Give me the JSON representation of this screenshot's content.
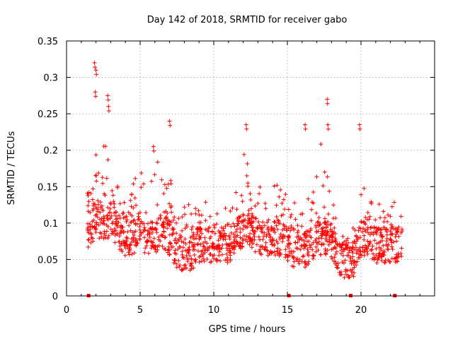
{
  "chart_data": {
    "type": "scatter",
    "title": "Day 142 of 2018, SRMTID for receiver gabo",
    "xlabel": "GPS time / hours",
    "ylabel": "SRMTID / TECUs",
    "xlim": [
      0,
      25
    ],
    "ylim": [
      0,
      0.35
    ],
    "xticks": [
      0,
      5,
      10,
      15,
      20
    ],
    "xtick_labels": [
      "0",
      "5",
      "10",
      "15",
      "20"
    ],
    "yticks": [
      0,
      0.05,
      0.1,
      0.15,
      0.2,
      0.25,
      0.3,
      0.35
    ],
    "ytick_labels": [
      "0",
      "0.05",
      "0.1",
      "0.15",
      "0.2",
      "0.25",
      "0.3",
      "0.35"
    ],
    "grid": true,
    "marker": "plus",
    "color": "#ff0000",
    "x_range_hours": [
      1.4,
      22.8
    ],
    "data_gap_markers_x": [
      1.5,
      15.1,
      19.3,
      22.3
    ],
    "envelope": {
      "x": [
        1.4,
        1.8,
        2.0,
        2.3,
        2.8,
        3.0,
        3.4,
        4.0,
        4.5,
        5.0,
        5.5,
        6.0,
        6.5,
        7.0,
        7.5,
        8.0,
        8.5,
        9.0,
        9.5,
        10.0,
        10.5,
        11.0,
        11.5,
        12.0,
        12.5,
        13.0,
        13.5,
        14.0,
        14.5,
        15.0,
        15.5,
        16.0,
        16.5,
        17.0,
        17.5,
        17.8,
        18.2,
        18.5,
        19.0,
        19.5,
        20.0,
        20.5,
        21.0,
        21.5,
        22.0,
        22.5,
        22.8
      ],
      "center": [
        0.09,
        0.1,
        0.11,
        0.1,
        0.1,
        0.11,
        0.09,
        0.08,
        0.08,
        0.09,
        0.08,
        0.08,
        0.09,
        0.08,
        0.06,
        0.06,
        0.06,
        0.07,
        0.07,
        0.07,
        0.07,
        0.07,
        0.08,
        0.09,
        0.09,
        0.08,
        0.08,
        0.08,
        0.08,
        0.07,
        0.06,
        0.06,
        0.07,
        0.08,
        0.08,
        0.08,
        0.07,
        0.05,
        0.05,
        0.05,
        0.08,
        0.08,
        0.07,
        0.07,
        0.07,
        0.07,
        0.07
      ],
      "spread": [
        0.04,
        0.07,
        0.11,
        0.06,
        0.07,
        0.07,
        0.04,
        0.04,
        0.05,
        0.05,
        0.05,
        0.06,
        0.07,
        0.07,
        0.04,
        0.04,
        0.04,
        0.04,
        0.04,
        0.03,
        0.03,
        0.04,
        0.04,
        0.07,
        0.06,
        0.05,
        0.05,
        0.06,
        0.05,
        0.05,
        0.05,
        0.06,
        0.07,
        0.07,
        0.09,
        0.08,
        0.05,
        0.03,
        0.03,
        0.04,
        0.07,
        0.05,
        0.04,
        0.04,
        0.04,
        0.04,
        0.03
      ]
    },
    "notable_peaks": [
      {
        "x": 1.9,
        "y": 0.32
      },
      {
        "x": 2.0,
        "y": 0.31
      },
      {
        "x": 1.95,
        "y": 0.28
      },
      {
        "x": 2.8,
        "y": 0.275
      },
      {
        "x": 2.85,
        "y": 0.26
      },
      {
        "x": 7.0,
        "y": 0.24
      },
      {
        "x": 12.2,
        "y": 0.235
      },
      {
        "x": 17.7,
        "y": 0.27
      },
      {
        "x": 17.75,
        "y": 0.235
      },
      {
        "x": 19.9,
        "y": 0.235
      },
      {
        "x": 16.2,
        "y": 0.235
      },
      {
        "x": 5.9,
        "y": 0.205
      }
    ],
    "point_count": 1400
  }
}
